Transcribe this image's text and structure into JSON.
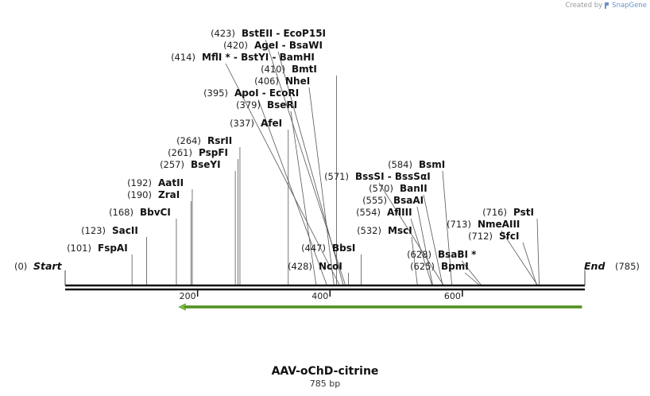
{
  "credit": {
    "prefix": "Created by",
    "brand": "SnapGene",
    "icon": "snapgene-logo-icon"
  },
  "title": "AAV-oChD-citrine",
  "subtitle": "785 bp",
  "map": {
    "length": 785,
    "start": {
      "pos": "(0)",
      "label": "Start"
    },
    "end": {
      "label": "End",
      "pos": "(785)"
    },
    "ticks": [
      200,
      400,
      600
    ],
    "feature": {
      "name": "green-arrow-feature",
      "from": 172,
      "to": 785,
      "direction": "reverse",
      "color": "#7dc242"
    }
  },
  "sites": [
    {
      "pos": "(423)",
      "label": "BstEII  - EcoP15I",
      "bp": 423
    },
    {
      "pos": "(420)",
      "label": "AgeI  - BsaWI",
      "bp": 420
    },
    {
      "pos": "(414)",
      "label": "MflI * - BstYI  - BamHI",
      "bp": 414
    },
    {
      "pos": "(410)",
      "label": "BmtI",
      "bp": 410
    },
    {
      "pos": "(406)",
      "label": "NheI",
      "bp": 406
    },
    {
      "pos": "(395)",
      "label": "ApoI  - EcoRI",
      "bp": 395
    },
    {
      "pos": "(379)",
      "label": "BseRI",
      "bp": 379
    },
    {
      "pos": "(337)",
      "label": "AfeI",
      "bp": 337
    },
    {
      "pos": "(264)",
      "label": "RsrII",
      "bp": 264
    },
    {
      "pos": "(261)",
      "label": "PspFI",
      "bp": 261
    },
    {
      "pos": "(257)",
      "label": "BseYI",
      "bp": 257
    },
    {
      "pos": "(192)",
      "label": "AatII",
      "bp": 192
    },
    {
      "pos": "(190)",
      "label": "ZraI",
      "bp": 190
    },
    {
      "pos": "(168)",
      "label": "BbvCI",
      "bp": 168
    },
    {
      "pos": "(123)",
      "label": "SacII",
      "bp": 123
    },
    {
      "pos": "(101)",
      "label": "FspAI",
      "bp": 101
    },
    {
      "pos": "(571)",
      "label": "BssSI  - BssSαI",
      "bp": 571
    },
    {
      "pos": "(584)",
      "label": "BsmI",
      "bp": 584
    },
    {
      "pos": "(570)",
      "label": "BanII",
      "bp": 570
    },
    {
      "pos": "(555)",
      "label": "BsaAI",
      "bp": 555
    },
    {
      "pos": "(554)",
      "label": "AflIII",
      "bp": 554
    },
    {
      "pos": "(532)",
      "label": "MscI",
      "bp": 532
    },
    {
      "pos": "(447)",
      "label": "BbsI",
      "bp": 447
    },
    {
      "pos": "(428)",
      "label": "NcoI",
      "bp": 428
    },
    {
      "pos": "(628)",
      "label": "BsaBI *",
      "bp": 628
    },
    {
      "pos": "(625)",
      "label": "BpmI",
      "bp": 625
    },
    {
      "pos": "(716)",
      "label": "PstI",
      "bp": 716
    },
    {
      "pos": "(713)",
      "label": "NmeAIII",
      "bp": 713
    },
    {
      "pos": "(712)",
      "label": "SfcI",
      "bp": 712
    }
  ]
}
